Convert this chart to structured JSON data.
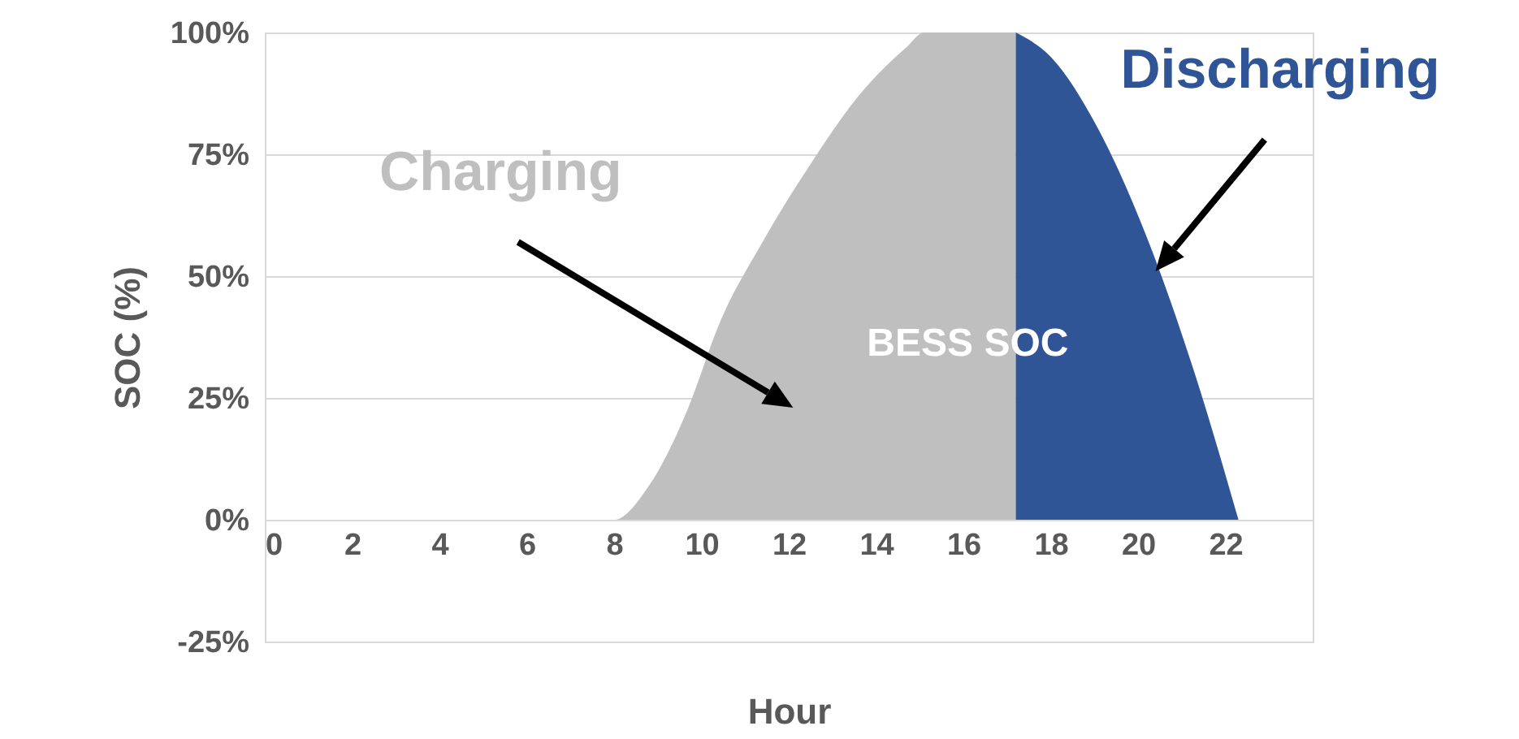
{
  "chart_data": {
    "type": "area",
    "xlabel": "Hour",
    "ylabel": "SOC (%)",
    "xlim": [
      0,
      24
    ],
    "xticks": [
      0,
      2,
      4,
      6,
      8,
      10,
      12,
      14,
      16,
      18,
      20,
      22
    ],
    "ylim": [
      -25,
      100
    ],
    "yticks": [
      {
        "value": -25,
        "label": "-25%"
      },
      {
        "value": 0,
        "label": "0%"
      },
      {
        "value": 25,
        "label": "25%"
      },
      {
        "value": 50,
        "label": "50%"
      },
      {
        "value": 75,
        "label": "75%"
      },
      {
        "value": 100,
        "label": "100%"
      }
    ],
    "grid": "y",
    "series": [
      {
        "name": "Charging",
        "color": "#bfbfbf",
        "x": [
          0,
          8,
          8.8,
          9.7,
          10.4,
          11.4,
          12.5,
          13.6,
          14.7,
          15.1,
          17.2
        ],
        "values": [
          0,
          0,
          7,
          23,
          40,
          57,
          73,
          87,
          97,
          100,
          100
        ]
      },
      {
        "name": "Discharging",
        "color": "#2f5597",
        "x": [
          17.2,
          18,
          19.1,
          20.2,
          21.3,
          22.3
        ],
        "values": [
          100,
          95,
          80,
          58,
          30,
          0
        ]
      }
    ],
    "annotations": [
      "BESS SOC"
    ]
  }
}
